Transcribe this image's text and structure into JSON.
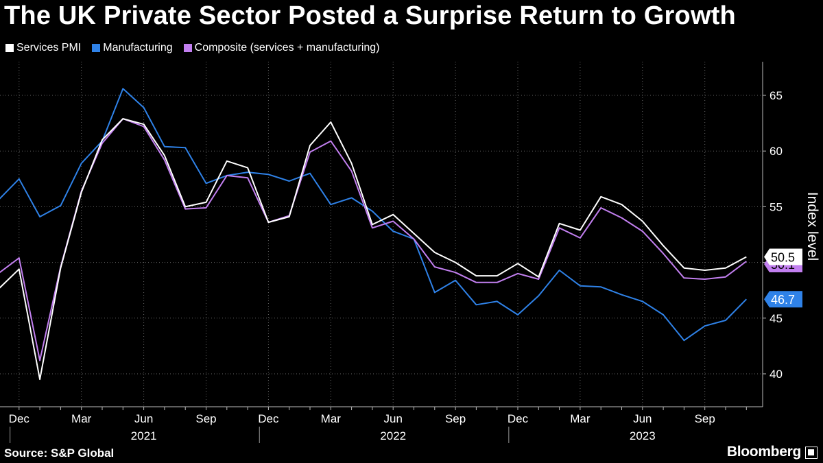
{
  "title": "The UK Private Sector Posted a Surprise Return to Growth",
  "source": "Source: S&P Global",
  "brand": "Bloomberg",
  "chart_data": {
    "type": "line",
    "ylabel": "Index level",
    "ylim": [
      37,
      68
    ],
    "yticks": [
      40,
      45,
      50,
      55,
      60,
      65
    ],
    "x": [
      "2020-11",
      "2020-12",
      "2021-01",
      "2021-02",
      "2021-03",
      "2021-04",
      "2021-05",
      "2021-06",
      "2021-07",
      "2021-08",
      "2021-09",
      "2021-10",
      "2021-11",
      "2021-12",
      "2022-01",
      "2022-02",
      "2022-03",
      "2022-04",
      "2022-05",
      "2022-06",
      "2022-07",
      "2022-08",
      "2022-09",
      "2022-10",
      "2022-11",
      "2022-12",
      "2023-01",
      "2023-02",
      "2023-03",
      "2023-04",
      "2023-05",
      "2023-06",
      "2023-07",
      "2023-08",
      "2023-09",
      "2023-10",
      "2023-11"
    ],
    "xtick_labels": [
      {
        "index": 1,
        "label": "Dec"
      },
      {
        "index": 4,
        "label": "Mar"
      },
      {
        "index": 7,
        "label": "Jun"
      },
      {
        "index": 10,
        "label": "Sep"
      },
      {
        "index": 13,
        "label": "Dec"
      },
      {
        "index": 16,
        "label": "Mar"
      },
      {
        "index": 19,
        "label": "Jun"
      },
      {
        "index": 22,
        "label": "Sep"
      },
      {
        "index": 25,
        "label": "Dec"
      },
      {
        "index": 28,
        "label": "Mar"
      },
      {
        "index": 31,
        "label": "Jun"
      },
      {
        "index": 34,
        "label": "Sep"
      }
    ],
    "year_labels": [
      {
        "center_index": 7,
        "label": "2021"
      },
      {
        "center_index": 19,
        "label": "2022"
      },
      {
        "center_index": 31,
        "label": "2023"
      }
    ],
    "year_separators": [
      0.5,
      12.5,
      24.5
    ],
    "series": [
      {
        "name": "Services PMI",
        "color": "#ffffff",
        "values": [
          47.6,
          49.4,
          39.5,
          49.5,
          56.3,
          61.0,
          62.9,
          62.4,
          59.6,
          55.0,
          55.4,
          59.1,
          58.5,
          53.6,
          54.1,
          60.5,
          62.6,
          58.9,
          53.4,
          54.3,
          52.6,
          50.9,
          50.0,
          48.8,
          48.8,
          49.9,
          48.7,
          53.5,
          52.9,
          55.9,
          55.2,
          53.7,
          51.5,
          49.5,
          49.3,
          49.5,
          50.5
        ]
      },
      {
        "name": "Manufacturing",
        "color": "#2f82e8",
        "values": [
          55.6,
          57.5,
          54.1,
          55.1,
          58.9,
          60.9,
          65.6,
          63.9,
          60.4,
          60.3,
          57.1,
          57.8,
          58.1,
          57.9,
          57.3,
          58.0,
          55.2,
          55.8,
          54.6,
          52.8,
          52.1,
          47.3,
          48.4,
          46.2,
          46.5,
          45.3,
          47.0,
          49.3,
          47.9,
          47.8,
          47.1,
          46.5,
          45.3,
          43.0,
          44.3,
          44.8,
          46.7
        ]
      },
      {
        "name": "Composite (services + manufacturing)",
        "color": "#c27ff0",
        "values": [
          49.0,
          50.4,
          41.2,
          49.6,
          56.4,
          60.7,
          62.9,
          62.2,
          59.2,
          54.8,
          54.9,
          57.8,
          57.6,
          53.6,
          54.2,
          59.9,
          60.9,
          58.2,
          53.1,
          53.7,
          52.1,
          49.6,
          49.1,
          48.2,
          48.2,
          49.0,
          48.5,
          53.1,
          52.2,
          54.9,
          54.0,
          52.8,
          50.8,
          48.6,
          48.5,
          48.7,
          50.1
        ]
      }
    ],
    "end_labels": [
      {
        "series": "Services PMI",
        "text": "50.5"
      },
      {
        "series": "Manufacturing",
        "text": "46.7"
      },
      {
        "series": "Composite (services + manufacturing)",
        "text": "50.1"
      }
    ]
  }
}
